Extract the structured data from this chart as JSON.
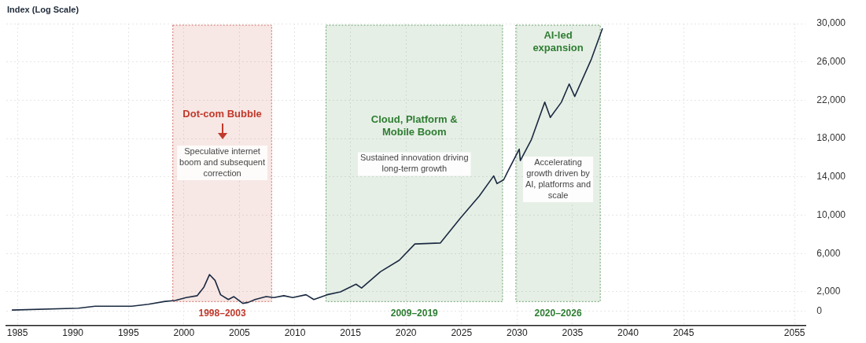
{
  "chart_data": {
    "type": "line",
    "title": "Index (Log Scale)",
    "x": [
      1984.5,
      1990.5,
      1992.0,
      1993.4,
      1995.3,
      1996.8,
      1998.3,
      1999.2,
      2000.2,
      2001.2,
      2001.8,
      2002.3,
      2002.8,
      2003.3,
      2004.0,
      2004.5,
      2005.3,
      2005.8,
      2006.4,
      2007.4,
      2008.1,
      2009.0,
      2009.8,
      2011.0,
      2011.7,
      2012.9,
      2014.1,
      2015.5,
      2016.0,
      2017.7,
      2019.4,
      2020.8,
      2023.1,
      2024.9,
      2026.6,
      2027.9,
      2028.2,
      2028.8,
      2029.1,
      2030.2,
      2030.3,
      2031.3,
      2032.5,
      2033.0,
      2034.0,
      2034.7,
      2035.2,
      2036.7,
      2037.7
    ],
    "series": [
      {
        "color": "#1b2a41",
        "values": [
          100,
          300,
          500,
          500,
          500,
          700,
          1000,
          1100,
          1400,
          1600,
          2500,
          3800,
          3200,
          1700,
          1200,
          1500,
          800,
          900,
          1200,
          1500,
          1400,
          1600,
          1400,
          1700,
          1200,
          1700,
          2000,
          2800,
          2400,
          4100,
          5300,
          7000,
          7100,
          9700,
          12000,
          14100,
          13300,
          13700,
          14400,
          16900,
          15700,
          17900,
          21800,
          20200,
          21800,
          23700,
          22400,
          26300,
          29500
        ]
      }
    ],
    "xlim": [
      1984,
      2056
    ],
    "xticks": [
      1985,
      1990,
      1995,
      2000,
      2005,
      2010,
      2015,
      2020,
      2025,
      2030,
      2035,
      2040,
      2045,
      2055
    ],
    "ylim": [
      -1500,
      30000
    ],
    "yticks": [
      0,
      {
        "value": 2000,
        "label": "2,000"
      },
      {
        "value": 6000,
        "label": "6,000"
      },
      {
        "value": 10000,
        "label": "10,000"
      },
      {
        "value": 14000,
        "label": "14,000"
      },
      {
        "value": 18000,
        "label": "18,000"
      },
      {
        "value": 22000,
        "label": "22,000"
      },
      {
        "value": 26000,
        "label": "26,000"
      },
      {
        "value": 30000,
        "label": "30,000"
      }
    ],
    "grid": true,
    "marker": "none",
    "line_style": "solid",
    "bands": [
      {
        "axis": "x",
        "from": 1999.0,
        "to": 2007.9,
        "label": "1998–2003",
        "color": "#c0392b"
      },
      {
        "axis": "x",
        "from": 2012.8,
        "to": 2028.7,
        "label": "2009–2019",
        "color": "#2e7d32"
      },
      {
        "axis": "x",
        "from": 2029.9,
        "to": 2037.5,
        "label": "2020–2026",
        "color": "#2e7d32"
      }
    ],
    "annotations": [
      "Dot-com Bubble",
      "Speculative internet boom and subsequent correction",
      "Cloud, Platform & Mobile Boom",
      "Sustained innovation driving long-term growth",
      "AI-led expansion",
      "Accelerating growth driven by AI, platforms and scale"
    ]
  }
}
